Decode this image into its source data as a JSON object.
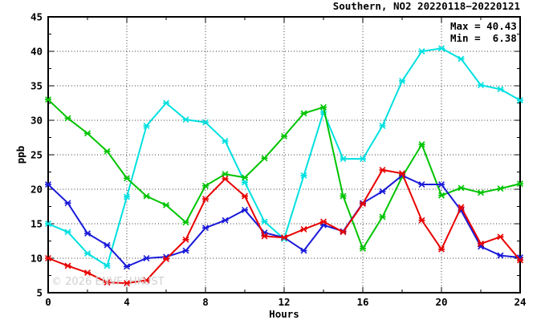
{
  "title": "Southern, NO2 20220118−20220121",
  "stats": {
    "max_label": "Max = 40.43",
    "min_label": "Min =  6.38"
  },
  "watermark": "© 2026 ENVF, HKUST",
  "chart_data": {
    "type": "line",
    "title": "Southern, NO2 20220118−20220121",
    "xlabel": "Hours",
    "ylabel": "ppb",
    "xlim": [
      0,
      24
    ],
    "ylim": [
      5,
      45
    ],
    "x_major_ticks": [
      0,
      4,
      8,
      12,
      16,
      20,
      24
    ],
    "x_minor_step": 2,
    "y_major_ticks": [
      5,
      10,
      15,
      20,
      25,
      30,
      35,
      40,
      45
    ],
    "y_minor_step": 2.5,
    "grid": true,
    "legend_position": "none",
    "max": 40.43,
    "min": 6.38,
    "x": [
      0,
      1,
      2,
      3,
      4,
      5,
      6,
      7,
      8,
      9,
      10,
      11,
      12,
      13,
      14,
      15,
      16,
      17,
      18,
      19,
      20,
      21,
      22,
      23,
      24
    ],
    "series": [
      {
        "name": "cyan",
        "color": "#00e0e0",
        "values": [
          15.0,
          13.8,
          10.7,
          8.9,
          18.9,
          29.2,
          32.5,
          30.1,
          29.7,
          27.0,
          21.0,
          15.3,
          12.8,
          22.0,
          31.2,
          24.4,
          24.4,
          29.2,
          35.7,
          40.0,
          40.43,
          38.9,
          35.1,
          34.5,
          32.9
        ]
      },
      {
        "name": "green",
        "color": "#00c400",
        "values": [
          33.0,
          30.3,
          28.1,
          25.5,
          21.6,
          19.0,
          17.7,
          15.2,
          20.5,
          22.2,
          21.7,
          24.5,
          27.7,
          31.0,
          31.9,
          19.0,
          11.4,
          16.0,
          21.8,
          26.5,
          19.1,
          20.2,
          19.5,
          20.1,
          20.8
        ]
      },
      {
        "name": "blue",
        "color": "#1a1ad9",
        "values": [
          20.7,
          18.0,
          13.6,
          11.9,
          8.8,
          10.0,
          10.2,
          11.1,
          14.4,
          15.5,
          17.0,
          13.7,
          13.0,
          11.1,
          14.8,
          13.9,
          18.0,
          19.7,
          22.0,
          20.7,
          20.7,
          16.9,
          11.7,
          10.4,
          10.1
        ]
      },
      {
        "name": "red",
        "color": "#e80000",
        "values": [
          10.0,
          8.9,
          7.9,
          6.5,
          6.38,
          6.8,
          9.9,
          12.7,
          18.6,
          21.5,
          19.0,
          13.2,
          13.0,
          14.2,
          15.3,
          13.8,
          17.9,
          22.8,
          22.3,
          15.5,
          11.3,
          17.4,
          12.1,
          13.1,
          9.7
        ]
      }
    ]
  }
}
